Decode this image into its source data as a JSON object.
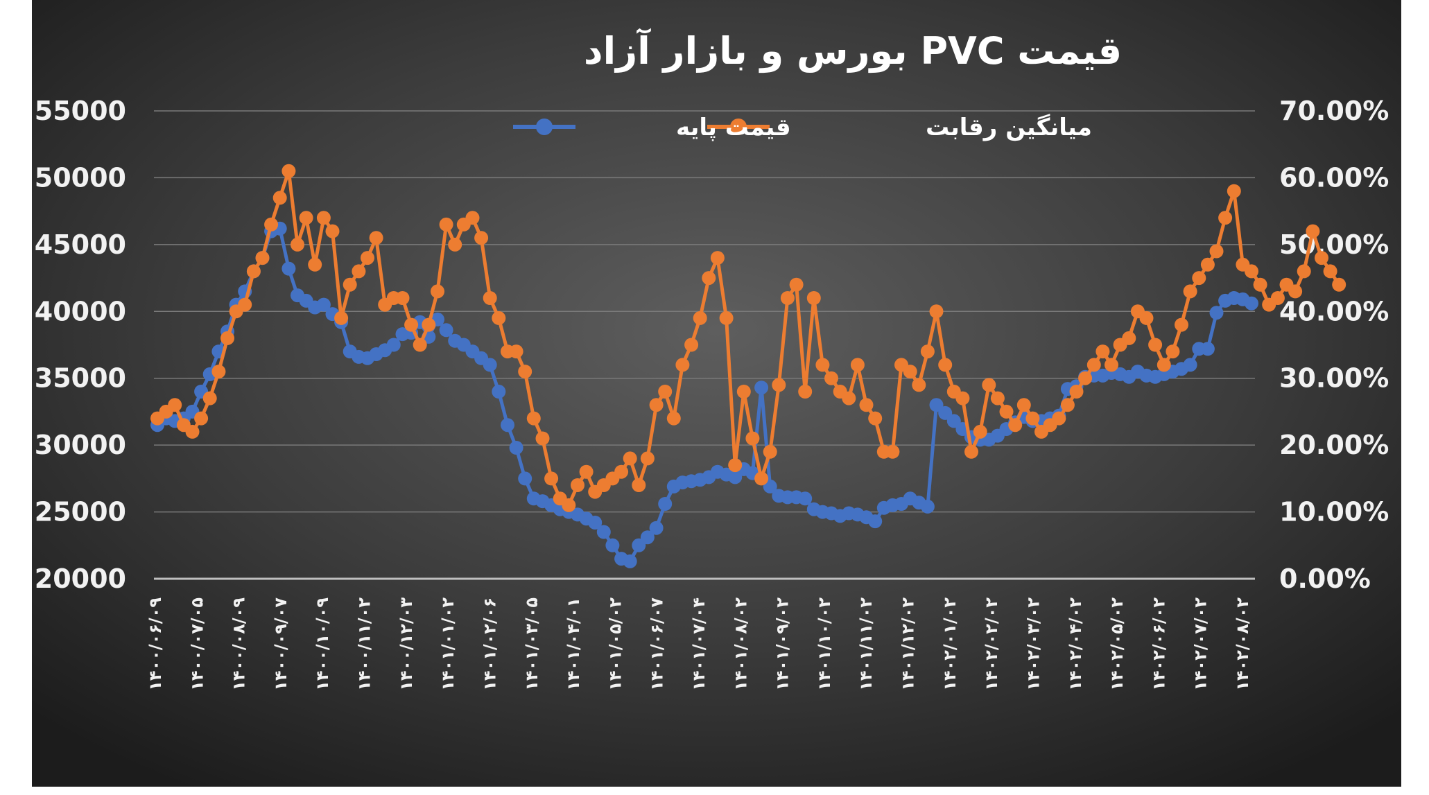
{
  "chart_data": {
    "type": "line",
    "title": "قیمت PVC بورس و بازار آزاد",
    "legend": {
      "placement": "top-center",
      "entries": [
        "میانگین رقابت",
        "قیمت پایه"
      ]
    },
    "grid": true,
    "colors": {
      "background_outer": "#1e1e1e",
      "background_inner": "#585858",
      "grid": "#7a7a7a",
      "axis": "#bfbfbf",
      "base_price": "#4472c4",
      "competition_avg": "#ed7d31"
    },
    "y_left": {
      "min": 20000,
      "max": 55000,
      "ticks": [
        "55000",
        "50000",
        "45000",
        "40000",
        "35000",
        "30000",
        "25000",
        "20000"
      ]
    },
    "y_right": {
      "min": 0,
      "max": 0.7,
      "ticks": [
        "70.00%",
        "60.00%",
        "50.00%",
        "40.00%",
        "30.00%",
        "20.00%",
        "10.00%",
        "0.00%"
      ]
    },
    "x_tick_labels": [
      "۱۴۰۰/۰۶/۰۹",
      "۱۴۰۰/۰۷/۰۵",
      "۱۴۰۰/۰۸/۰۹",
      "۱۴۰۰/۰۹/۰۷",
      "۱۴۰۰/۱۰/۰۹",
      "۱۴۰۰/۱۱/۰۲",
      "۱۴۰۰/۱۲/۰۳",
      "۱۴۰۱/۰۱/۰۲",
      "۱۴۰۱/۰۲/۰۶",
      "۱۴۰۱/۰۳/۰۵",
      "۱۴۰۱/۰۴/۰۱",
      "۱۴۰۱/۰۵/۰۲",
      "۱۴۰۱/۰۶/۰۷",
      "۱۴۰۱/۰۷/۰۴",
      "۱۴۰۱/۰۸/۰۲",
      "۱۴۰۱/۰۹/۰۲",
      "۱۴۰۱/۱۰/۰۲",
      "۱۴۰۱/۱۱/۰۲",
      "۱۴۰۱/۱۲/۰۲",
      "۱۴۰۲/۰۱/۰۲",
      "۱۴۰۲/۰۲/۰۲",
      "۱۴۰۲/۰۳/۰۲",
      "۱۴۰۲/۰۴/۰۲",
      "۱۴۰۲/۰۵/۰۲",
      "۱۴۰۲/۰۶/۰۲",
      "۱۴۰۲/۰۷/۰۲",
      "۱۴۰۲/۰۸/۰۲"
    ],
    "series": [
      {
        "name": "قیمت پایه",
        "axis": "left",
        "values": [
          31500,
          32000,
          31800,
          32000,
          32500,
          34000,
          35300,
          37000,
          38500,
          40500,
          41500,
          43000,
          44000,
          46000,
          46200,
          43200,
          41200,
          40800,
          40300,
          40500,
          39800,
          39200,
          37000,
          36600,
          36500,
          36800,
          37100,
          37500,
          38300,
          38400,
          39200,
          38100,
          39400,
          38600,
          37800,
          37500,
          37000,
          36500,
          36000,
          34000,
          31500,
          29800,
          27500,
          26000,
          25800,
          25500,
          25200,
          25000,
          24800,
          24500,
          24200,
          23500,
          22500,
          21500,
          21300,
          22500,
          23100,
          23800,
          25600,
          26900,
          27200,
          27300,
          27400,
          27600,
          28000,
          27800,
          27600,
          28200,
          27900,
          34300,
          26900,
          26200,
          26100,
          26100,
          26000,
          25200,
          25000,
          24900,
          24700,
          24900,
          24800,
          24600,
          24300,
          25300,
          25500,
          25600,
          26000,
          25700,
          25400,
          33000,
          32400,
          31800,
          31200,
          30600,
          30400,
          30400,
          30700,
          31200,
          31700,
          32100,
          31800,
          31800,
          32000,
          32200,
          34200,
          34400,
          35100,
          35200,
          35200,
          35400,
          35300,
          35100,
          35500,
          35200,
          35100,
          35300,
          35500,
          35700,
          36000,
          37200,
          37200,
          39900,
          40800,
          41000,
          40900,
          40600
        ]
      },
      {
        "name": "میانگین رقابت",
        "axis": "right",
        "values": [
          0.24,
          0.25,
          0.26,
          0.23,
          0.22,
          0.24,
          0.27,
          0.31,
          0.36,
          0.4,
          0.41,
          0.46,
          0.48,
          0.53,
          0.57,
          0.61,
          0.5,
          0.54,
          0.47,
          0.54,
          0.52,
          0.39,
          0.44,
          0.46,
          0.48,
          0.51,
          0.41,
          0.42,
          0.42,
          0.38,
          0.35,
          0.38,
          0.43,
          0.53,
          0.5,
          0.53,
          0.54,
          0.51,
          0.42,
          0.39,
          0.34,
          0.34,
          0.31,
          0.24,
          0.21,
          0.15,
          0.12,
          0.11,
          0.14,
          0.16,
          0.13,
          0.14,
          0.15,
          0.16,
          0.18,
          0.14,
          0.18,
          0.26,
          0.28,
          0.24,
          0.32,
          0.35,
          0.39,
          0.45,
          0.48,
          0.39,
          0.17,
          0.28,
          0.21,
          0.15,
          0.19,
          0.29,
          0.42,
          0.44,
          0.28,
          0.42,
          0.32,
          0.3,
          0.28,
          0.27,
          0.32,
          0.26,
          0.24,
          0.19,
          0.19,
          0.32,
          0.31,
          0.29,
          0.34,
          0.4,
          0.32,
          0.28,
          0.27,
          0.19,
          0.22,
          0.29,
          0.27,
          0.25,
          0.23,
          0.26,
          0.24,
          0.22,
          0.23,
          0.24,
          0.26,
          0.28,
          0.3,
          0.32,
          0.34,
          0.32,
          0.35,
          0.36,
          0.4,
          0.39,
          0.35,
          0.32,
          0.34,
          0.38,
          0.43,
          0.45,
          0.47,
          0.49,
          0.54,
          0.58,
          0.47,
          0.46,
          0.44,
          0.41,
          0.42,
          0.44,
          0.43,
          0.46,
          0.52,
          0.48,
          0.46,
          0.44
        ]
      }
    ]
  }
}
